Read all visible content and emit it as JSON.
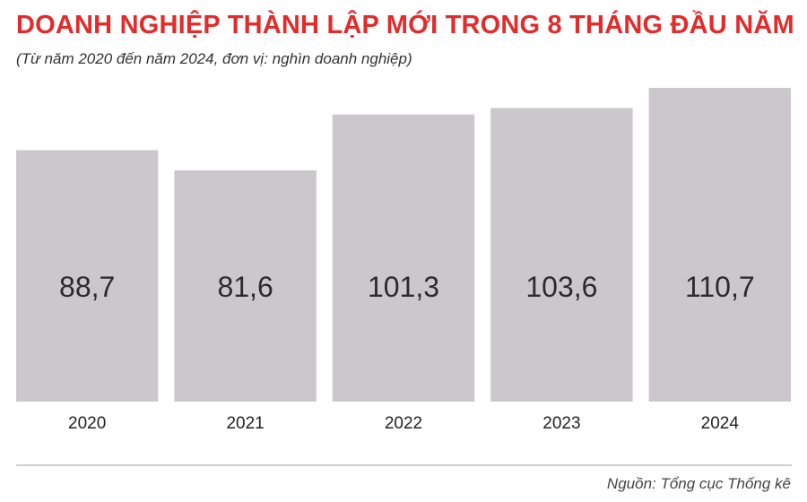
{
  "header": {
    "title": "DOANH NGHIỆP THÀNH LẬP MỚI TRONG 8 THÁNG ĐẦU NĂM",
    "subtitle": "(Từ năm 2020 đến năm 2024, đơn vị: nghìn doanh nghiệp)"
  },
  "footer": {
    "source": "Nguồn: Tổng cục Thống kê"
  },
  "colors": {
    "title": "#e32b2b",
    "bar": "#cbc8cb",
    "value_text": "#2b2b2b",
    "axis_text": "#222222"
  },
  "chart_data": {
    "type": "bar",
    "title": "DOANH NGHIỆP THÀNH LẬP MỚI TRONG 8 THÁNG ĐẦU NĂM",
    "subtitle": "(Từ năm 2020 đến năm 2024, đơn vị: nghìn doanh nghiệp)",
    "categories": [
      "2020",
      "2021",
      "2022",
      "2023",
      "2024"
    ],
    "values": [
      88.7,
      81.6,
      101.3,
      103.6,
      110.7
    ],
    "value_labels": [
      "88,7",
      "81,6",
      "101,3",
      "103,6",
      "110,7"
    ],
    "xlabel": "",
    "ylabel": "",
    "ylim": [
      0,
      110.7
    ],
    "grid": false,
    "legend": "none"
  }
}
